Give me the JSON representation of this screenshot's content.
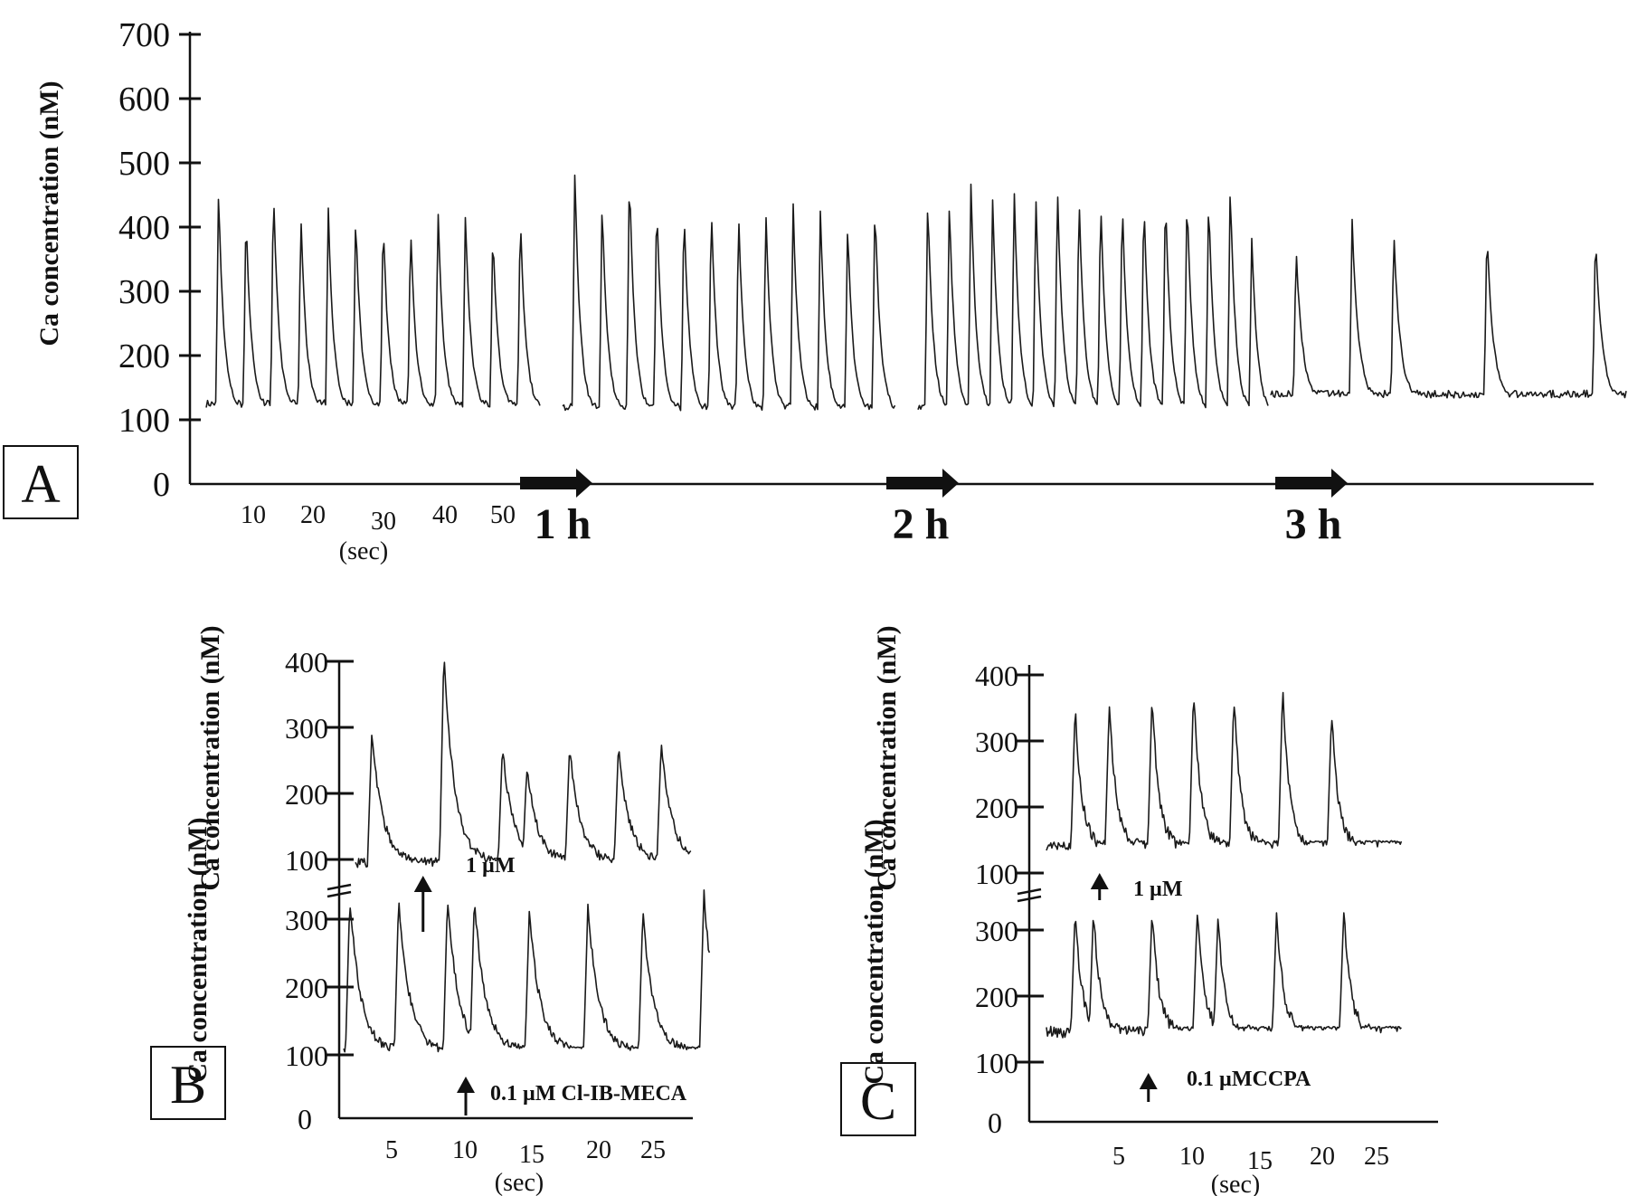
{
  "chart_data": [
    {
      "type": "line",
      "panel": "A",
      "ylabel": "Ca concentration (nM)",
      "yticks": [
        "700",
        "600",
        "500",
        "400",
        "300",
        "200",
        "100",
        "0"
      ],
      "xticks": [
        "10",
        "20",
        "30",
        "40",
        "50"
      ],
      "xunit": "(sec)",
      "time_markers": [
        "1 h",
        "2 h",
        "3 h"
      ],
      "ylim": [
        0,
        700
      ],
      "segments": [
        {
          "baseline": 115,
          "peaks": [
            460,
            425,
            470,
            425,
            430,
            425,
            420,
            405,
            430,
            425,
            400,
            425
          ]
        },
        {
          "baseline": 110,
          "peaks": [
            490,
            445,
            490,
            450,
            440,
            440,
            430,
            430,
            440,
            430,
            410,
            445
          ]
        },
        {
          "baseline": 110,
          "peaks": [
            450,
            440,
            470,
            450,
            460,
            455,
            470,
            460,
            450,
            450,
            450,
            460,
            460,
            450,
            470,
            390
          ]
        },
        {
          "baseline": 130,
          "peaks": [
            370,
            410,
            395,
            395,
            390
          ]
        }
      ]
    },
    {
      "type": "line",
      "panel": "B",
      "ylabel": "Ca concentration (nM)",
      "xticks": [
        "5",
        "10",
        "15",
        "20",
        "25"
      ],
      "xunit": "(sec)",
      "series": [
        {
          "name": "1 µM",
          "yticks": [
            "400",
            "300",
            "200",
            "100"
          ],
          "baseline": 95,
          "peaks": [
            {
              "x": 2.3,
              "y": 290
            },
            {
              "x": 8.2,
              "y": 410
            },
            {
              "x": 13.0,
              "y": 270
            },
            {
              "x": 15.0,
              "y": 240
            },
            {
              "x": 18.5,
              "y": 270
            },
            {
              "x": 22.5,
              "y": 270
            },
            {
              "x": 26.0,
              "y": 275
            }
          ],
          "arrow_x": 6.5
        },
        {
          "name": "0.1 µM Cl-IB-MECA",
          "yticks": [
            "300",
            "200",
            "100"
          ],
          "extra_tick": "0",
          "baseline": 105,
          "peaks": [
            {
              "x": 0.5,
              "y": 330
            },
            {
              "x": 4.5,
              "y": 330
            },
            {
              "x": 8.5,
              "y": 330
            },
            {
              "x": 10.7,
              "y": 330
            },
            {
              "x": 15.2,
              "y": 310
            },
            {
              "x": 20.0,
              "y": 320
            },
            {
              "x": 24.5,
              "y": 310
            },
            {
              "x": 29.5,
              "y": 340
            }
          ],
          "arrow_x": 10.0
        }
      ]
    },
    {
      "type": "line",
      "panel": "C",
      "ylabel": "Ca concentration (nM)",
      "xticks": [
        "5",
        "10",
        "15",
        "20",
        "25"
      ],
      "xunit": "(sec)",
      "series": [
        {
          "name": "1 µM",
          "yticks": [
            "400",
            "300",
            "200",
            "100"
          ],
          "baseline": 140,
          "peaks": [
            {
              "x": 2.5,
              "y": 350
            },
            {
              "x": 5.3,
              "y": 360
            },
            {
              "x": 8.8,
              "y": 370
            },
            {
              "x": 12.2,
              "y": 380
            },
            {
              "x": 15.5,
              "y": 370
            },
            {
              "x": 19.5,
              "y": 385
            },
            {
              "x": 23.5,
              "y": 345
            }
          ],
          "arrow_x": 4.5
        },
        {
          "name": "0.1 µMCCPA",
          "yticks": [
            "300",
            "200",
            "100"
          ],
          "extra_tick": "0",
          "baseline": 145,
          "peaks": [
            {
              "x": 2.5,
              "y": 330
            },
            {
              "x": 4.0,
              "y": 330
            },
            {
              "x": 8.8,
              "y": 330
            },
            {
              "x": 12.5,
              "y": 330
            },
            {
              "x": 14.2,
              "y": 320
            },
            {
              "x": 19.0,
              "y": 330
            },
            {
              "x": 24.5,
              "y": 330
            }
          ],
          "arrow_x": 8.5
        }
      ]
    }
  ],
  "panel_labels": {
    "a": "A",
    "b": "B",
    "c": "C"
  }
}
